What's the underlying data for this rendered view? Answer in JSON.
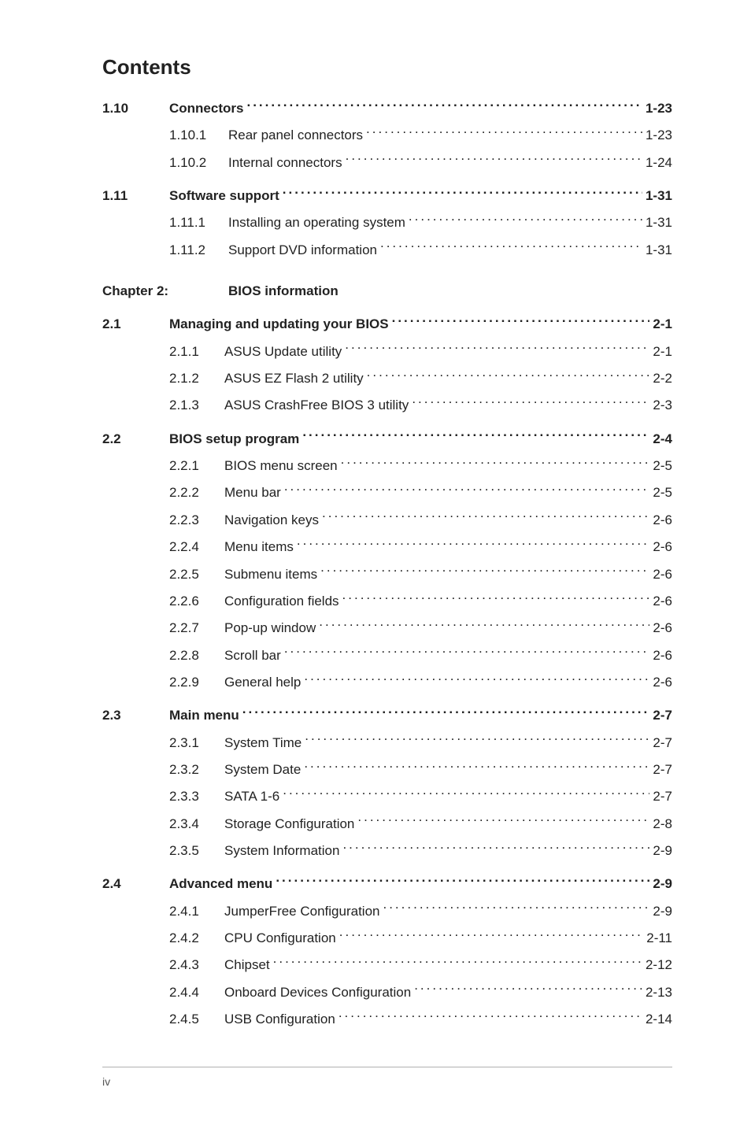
{
  "page_title": "Contents",
  "footer_page_num": "iv",
  "chapter": {
    "num": "Chapter 2:",
    "title": "BIOS information"
  },
  "sections": [
    {
      "num": "1.10",
      "label": "Connectors",
      "pg": "1-23",
      "subs": [
        {
          "num": "1.10.1",
          "label": "Rear panel connectors",
          "pg": "1-23"
        },
        {
          "num": "1.10.2",
          "label": "Internal connectors",
          "pg": "1-24"
        }
      ]
    },
    {
      "num": "1.11",
      "label": "Software support",
      "pg": "1-31",
      "subs": [
        {
          "num": "1.11.1",
          "label": "Installing an operating system",
          "pg": "1-31"
        },
        {
          "num": "1.11.2",
          "label": "Support DVD information",
          "pg": "1-31"
        }
      ]
    }
  ],
  "sections2": [
    {
      "num": "2.1",
      "label": "Managing and updating your BIOS",
      "pg": "2-1",
      "subs": [
        {
          "num": "2.1.1",
          "label": "ASUS Update utility",
          "pg": "2-1"
        },
        {
          "num": "2.1.2",
          "label": "ASUS EZ Flash 2 utility",
          "pg": "2-2"
        },
        {
          "num": "2.1.3",
          "label": "ASUS CrashFree BIOS 3 utility",
          "pg": "2-3"
        }
      ]
    },
    {
      "num": "2.2",
      "label": "BIOS setup program",
      "pg": "2-4",
      "subs": [
        {
          "num": "2.2.1",
          "label": "BIOS menu screen",
          "pg": "2-5"
        },
        {
          "num": "2.2.2",
          "label": "Menu bar",
          "pg": "2-5"
        },
        {
          "num": "2.2.3",
          "label": "Navigation keys",
          "pg": "2-6"
        },
        {
          "num": "2.2.4",
          "label": "Menu items",
          "pg": "2-6"
        },
        {
          "num": "2.2.5",
          "label": "Submenu items",
          "pg": "2-6"
        },
        {
          "num": "2.2.6",
          "label": "Configuration fields",
          "pg": "2-6"
        },
        {
          "num": "2.2.7",
          "label": "Pop-up window",
          "pg": "2-6"
        },
        {
          "num": "2.2.8",
          "label": "Scroll bar",
          "pg": "2-6"
        },
        {
          "num": "2.2.9",
          "label": "General help",
          "pg": "2-6"
        }
      ]
    },
    {
      "num": "2.3",
      "label": "Main menu",
      "pg": "2-7",
      "subs": [
        {
          "num": "2.3.1",
          "label": "System Time",
          "pg": "2-7"
        },
        {
          "num": "2.3.2",
          "label": "System Date",
          "pg": "2-7"
        },
        {
          "num": "2.3.3",
          "label": "SATA 1-6",
          "pg": "2-7"
        },
        {
          "num": "2.3.4",
          "label": "Storage Configuration",
          "pg": "2-8"
        },
        {
          "num": "2.3.5",
          "label": "System Information",
          "pg": "2-9"
        }
      ]
    },
    {
      "num": "2.4",
      "label": "Advanced menu",
      "pg": "2-9",
      "subs": [
        {
          "num": "2.4.1",
          "label": "JumperFree Configuration",
          "pg": "2-9"
        },
        {
          "num": "2.4.2",
          "label": "CPU Configuration",
          "pg": "2-11"
        },
        {
          "num": "2.4.3",
          "label": "Chipset",
          "pg": "2-12"
        },
        {
          "num": "2.4.4",
          "label": "Onboard Devices Configuration",
          "pg": "2-13"
        },
        {
          "num": "2.4.5",
          "label": "USB Configuration",
          "pg": "2-14"
        }
      ]
    }
  ]
}
